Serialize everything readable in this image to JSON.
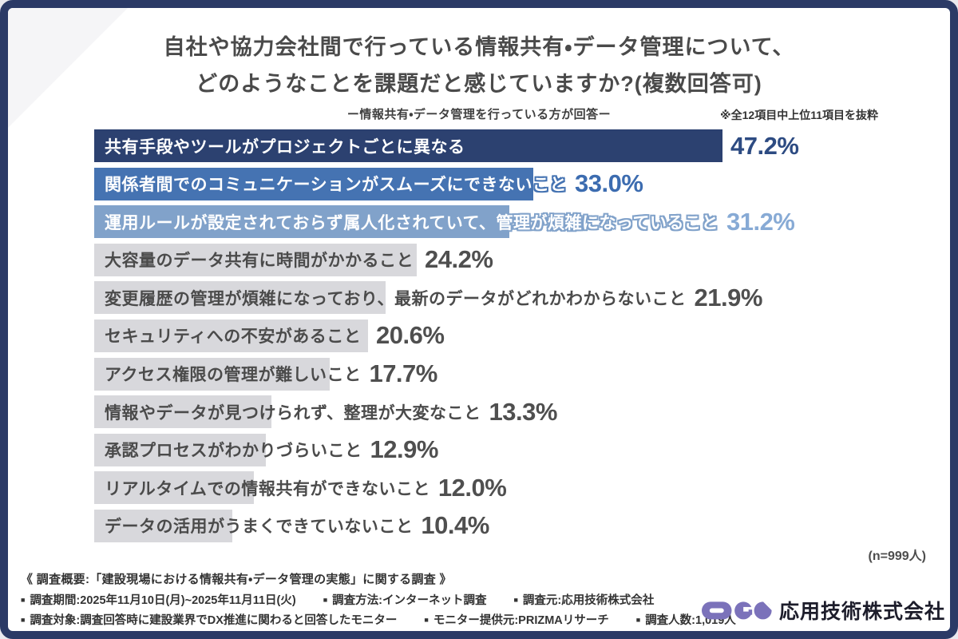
{
  "frame": {
    "border_color": "#2b3a66",
    "background": "#ffffff"
  },
  "header": {
    "title_line1": "自社や協力会社間で行っている情報共有・データ管理について、",
    "title_line2": "どのようなことを課題だと感じていますか?(複数回答可)",
    "subtitle": "ー情報共有・データ管理を行っている方が回答ー",
    "note": "※全12項目中上位11項目を抜粋"
  },
  "chart_data": {
    "type": "bar",
    "orientation": "horizontal",
    "title": "自社や協力会社間で行っている情報共有・データ管理について、どのようなことを課題だと感じていますか?(複数回答可)",
    "unit": "%",
    "xlim": [
      0,
      50
    ],
    "grid": false,
    "legend": false,
    "categories": [
      "共有手段やツールがプロジェクトごとに異なる",
      "関係者間でのコミュニケーションがスムーズにできないこと",
      "運用ルールが設定されておらず属人化されていて、管理が煩雑になっていること",
      "大容量のデータ共有に時間がかかること",
      "変更履歴の管理が煩雑になっており、最新のデータがどれかわからないこと",
      "セキュリティへの不安があること",
      "アクセス権限の管理が難しいこと",
      "情報やデータが見つけられず、整理が大変なこと",
      "承認プロセスがわかりづらいこと",
      "リアルタイムでの情報共有ができないこと",
      "データの活用がうまくできていないこと"
    ],
    "values": [
      47.2,
      33.0,
      31.2,
      24.2,
      21.9,
      20.6,
      17.7,
      13.3,
      12.9,
      12.0,
      10.4
    ],
    "display_values": [
      "47.2%",
      "33.0%",
      "31.2%",
      "24.2%",
      "21.9%",
      "20.6%",
      "17.7%",
      "13.3%",
      "12.9%",
      "12.0%",
      "10.4%"
    ],
    "bar_colors": [
      "#2c4170",
      "#4573b2",
      "#81a2ca",
      "#d8d8dc",
      "#d8d8dc",
      "#d8d8dc",
      "#d8d8dc",
      "#d8d8dc",
      "#d8d8dc",
      "#d8d8dc",
      "#d8d8dc"
    ],
    "value_colors": [
      "#2d4b82",
      "#3c6cb0",
      "#87aad5",
      "#4f4f4f",
      "#4f4f4f",
      "#4f4f4f",
      "#4f4f4f",
      "#4f4f4f",
      "#4f4f4f",
      "#4f4f4f",
      "#4f4f4f"
    ],
    "label_modes": [
      "outline-white",
      "outline-white",
      "outline-white",
      "plain-gray",
      "plain-gray",
      "plain-gray",
      "plain-gray",
      "plain-gray",
      "plain-gray",
      "plain-gray",
      "plain-gray"
    ],
    "gray_label_color": "#4b4b4b"
  },
  "sample_note": "(n=999人)",
  "footer": {
    "heading": "《 調査概要:「建設現場における情報共有・データ管理の実態」に関する調査 》",
    "bullet": "■",
    "rows": [
      [
        "調査期間:2025年11月10日(月)~2025年11月11日(火)",
        "調査方法:インターネット調査",
        "調査元:応用技術株式会社"
      ],
      [
        "調査対象:調査回答時に建設業界でDX推進に関わると回答したモニター",
        "モニター提供元:PRIZMAリサーチ",
        "調査人数:1,019人"
      ]
    ]
  },
  "logo": {
    "company": "応用技術株式会社",
    "mark_color": "#7b72ba"
  }
}
